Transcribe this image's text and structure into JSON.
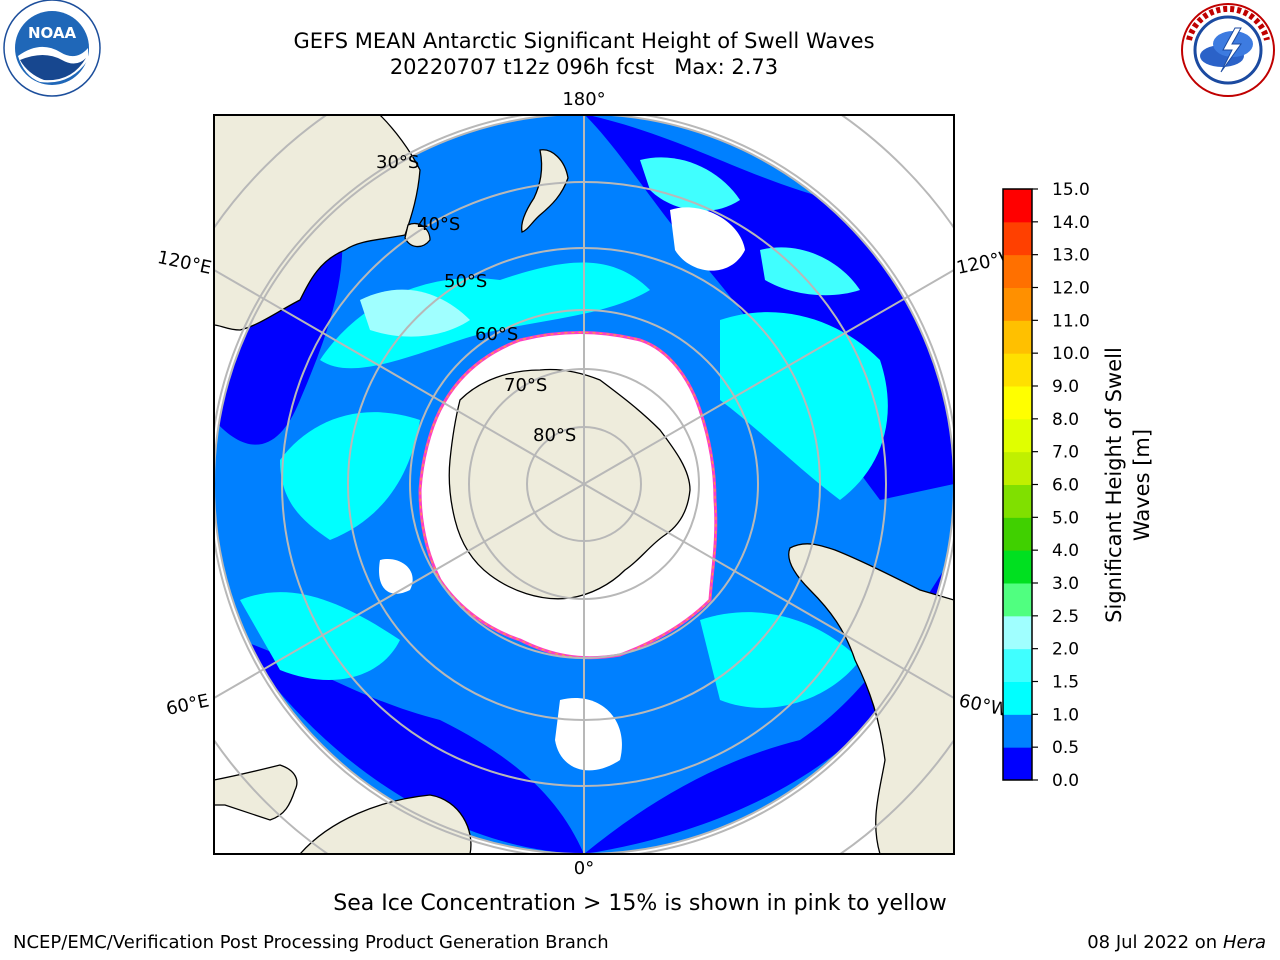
{
  "header": {
    "title_line1": "GEFS MEAN Antarctic Significant Height of Swell Waves",
    "title_line2": "20220707 t12z 096h fcst   Max: 2.73"
  },
  "logos": {
    "left": {
      "name": "NOAA",
      "ring_text": "NATIONAL OCEANIC AND ATMOSPHERIC ADMINISTRATION · U.S. DEPARTMENT OF COMMERCE",
      "text": "NOAA"
    },
    "right": {
      "name": "National Weather Service",
      "text": "NATIONAL WEATHER SERVICE"
    }
  },
  "map": {
    "longitude_labels": [
      "180°",
      "120°E",
      "120°W",
      "60°E",
      "60°W",
      "0°"
    ],
    "latitude_labels": [
      "30°S",
      "40°S",
      "50°S",
      "60°S",
      "70°S",
      "80°S"
    ],
    "colors": {
      "land": "#eeecdc",
      "sea_ice": "#ffffff",
      "ice_edge": [
        "#ff40c0",
        "#ffa040",
        "#ffd040"
      ],
      "grid": "#b8b8b8"
    }
  },
  "colorbar": {
    "label": "Significant Height of Swell Waves [m]",
    "ticks": [
      "0.0",
      "0.5",
      "1.0",
      "1.5",
      "2.0",
      "2.5",
      "3.0",
      "4.0",
      "5.0",
      "6.0",
      "7.0",
      "8.0",
      "9.0",
      "10.0",
      "11.0",
      "12.0",
      "13.0",
      "14.0",
      "15.0"
    ],
    "colors": [
      "#0000ff",
      "#0080ff",
      "#00ffff",
      "#40ffff",
      "#a0ffff",
      "#50ff80",
      "#00e020",
      "#40d000",
      "#80e000",
      "#c0f000",
      "#e0ff00",
      "#ffff00",
      "#ffe000",
      "#ffc000",
      "#ff9000",
      "#ff7000",
      "#ff4000",
      "#ff0000"
    ]
  },
  "caption": "Sea Ice Concentration > 15% is shown in pink to yellow",
  "footer": {
    "left": "NCEP/EMC/Verification Post Processing Product Generation Branch",
    "date": "08 Jul 2022 on",
    "machine": "Hera"
  }
}
